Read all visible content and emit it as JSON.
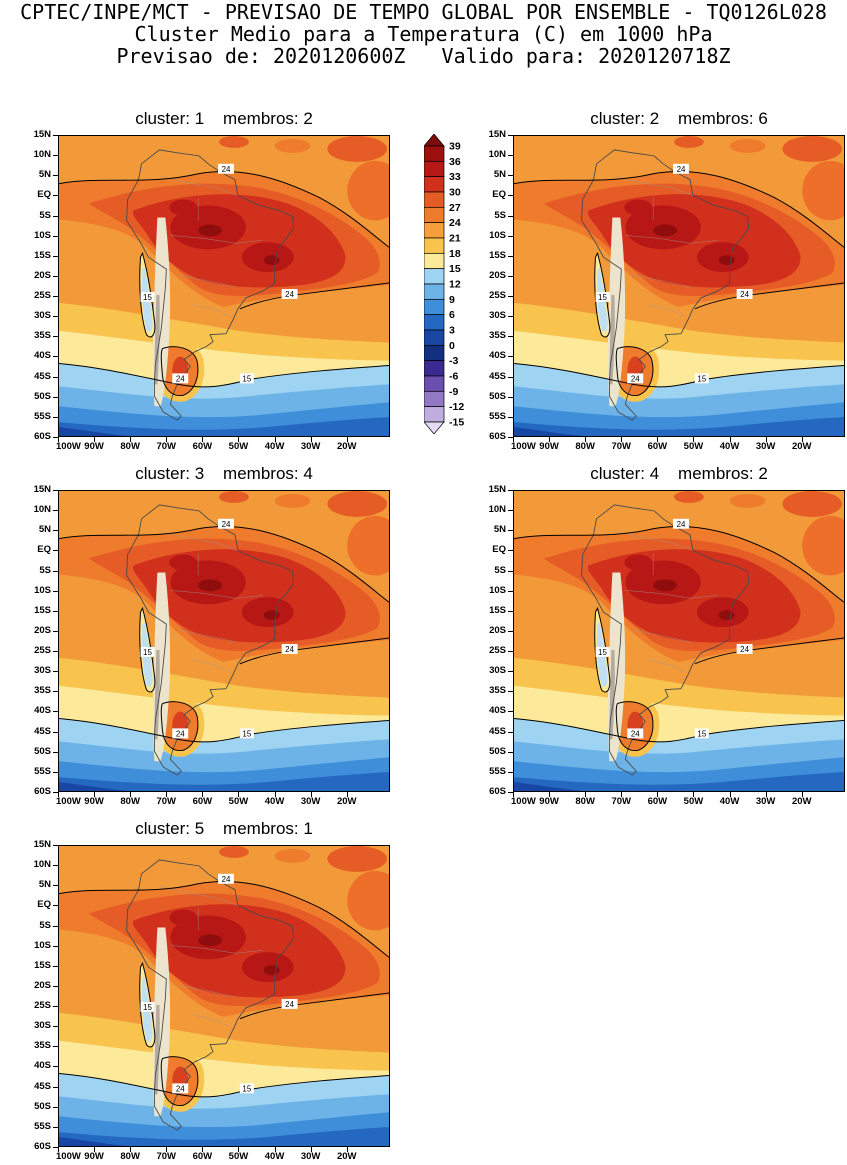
{
  "header": {
    "line1": "CPTEC/INPE/MCT - PREVISAO DE TEMPO GLOBAL POR ENSEMBLE - TQ0126L028",
    "line2": "Cluster Medio para a Temperatura (C) em 1000 hPa",
    "line3": "Previsao de: 2020120600Z   Valido para: 2020120718Z"
  },
  "panels": [
    {
      "cluster": 1,
      "membros": 2,
      "title": "cluster: 1    membros: 2"
    },
    {
      "cluster": 2,
      "membros": 6,
      "title": "cluster: 2    membros: 6"
    },
    {
      "cluster": 3,
      "membros": 4,
      "title": "cluster: 3    membros: 4"
    },
    {
      "cluster": 4,
      "membros": 2,
      "title": "cluster: 4    membros: 2"
    },
    {
      "cluster": 5,
      "membros": 1,
      "title": "cluster: 5    membros: 1"
    }
  ],
  "axes": {
    "lat_labels": [
      "15N",
      "10N",
      "5N",
      "EQ",
      "5S",
      "10S",
      "15S",
      "20S",
      "25S",
      "30S",
      "35S",
      "40S",
      "45S",
      "50S",
      "55S",
      "60S"
    ],
    "lon_labels": [
      "100W",
      "90W",
      "80W",
      "70W",
      "60W",
      "50W",
      "40W",
      "30W",
      "20W"
    ]
  },
  "colorbar": {
    "labels": [
      "39",
      "36",
      "33",
      "30",
      "27",
      "24",
      "21",
      "18",
      "15",
      "12",
      "9",
      "6",
      "3",
      "0",
      "-3",
      "-6",
      "-9",
      "-12",
      "-15"
    ],
    "colors": [
      "#7f0b0b",
      "#9c1010",
      "#b81815",
      "#d0301c",
      "#e65c26",
      "#ef7c2c",
      "#f5a03c",
      "#f9c44e",
      "#fcea9a",
      "#9fd3f2",
      "#6db3e8",
      "#3f8eda",
      "#2468c2",
      "#1747a3",
      "#122f80",
      "#3b2b90",
      "#6a4fae",
      "#9379c4",
      "#bfaede",
      "#e4dcf2"
    ]
  },
  "map": {
    "contour_labels": [
      {
        "text": "24"
      },
      {
        "text": "24"
      },
      {
        "text": "15"
      },
      {
        "text": "24"
      },
      {
        "text": "15"
      }
    ]
  },
  "chart_data": {
    "type": "heatmap",
    "title": "CPTEC/INPE/MCT - PREVISAO DE TEMPO GLOBAL POR ENSEMBLE - TQ0126L028",
    "subtitle": "Cluster Medio para a Temperatura (C) em 1000 hPa",
    "forecast_line": "Previsao de: 2020120600Z   Valido para: 2020120718Z",
    "variable": "Temperatura",
    "units": "C",
    "level_hPa": 1000,
    "panels": [
      {
        "cluster": 1,
        "membros": 2
      },
      {
        "cluster": 2,
        "membros": 6
      },
      {
        "cluster": 3,
        "membros": 4
      },
      {
        "cluster": 4,
        "membros": 2
      },
      {
        "cluster": 5,
        "membros": 1
      }
    ],
    "x_ticks": [
      "100W",
      "90W",
      "80W",
      "70W",
      "60W",
      "50W",
      "40W",
      "30W",
      "20W"
    ],
    "y_ticks": [
      "15N",
      "10N",
      "5N",
      "EQ",
      "5S",
      "10S",
      "15S",
      "20S",
      "25S",
      "30S",
      "35S",
      "40S",
      "45S",
      "50S",
      "55S",
      "60S"
    ],
    "colorbar_levels": [
      39,
      36,
      33,
      30,
      27,
      24,
      21,
      18,
      15,
      12,
      9,
      6,
      3,
      0,
      -3,
      -6,
      -9,
      -12,
      -15
    ],
    "labeled_contours": [
      24,
      15
    ],
    "legend_position": "vertical colorbar between panel 1 and panel 2, top row"
  }
}
